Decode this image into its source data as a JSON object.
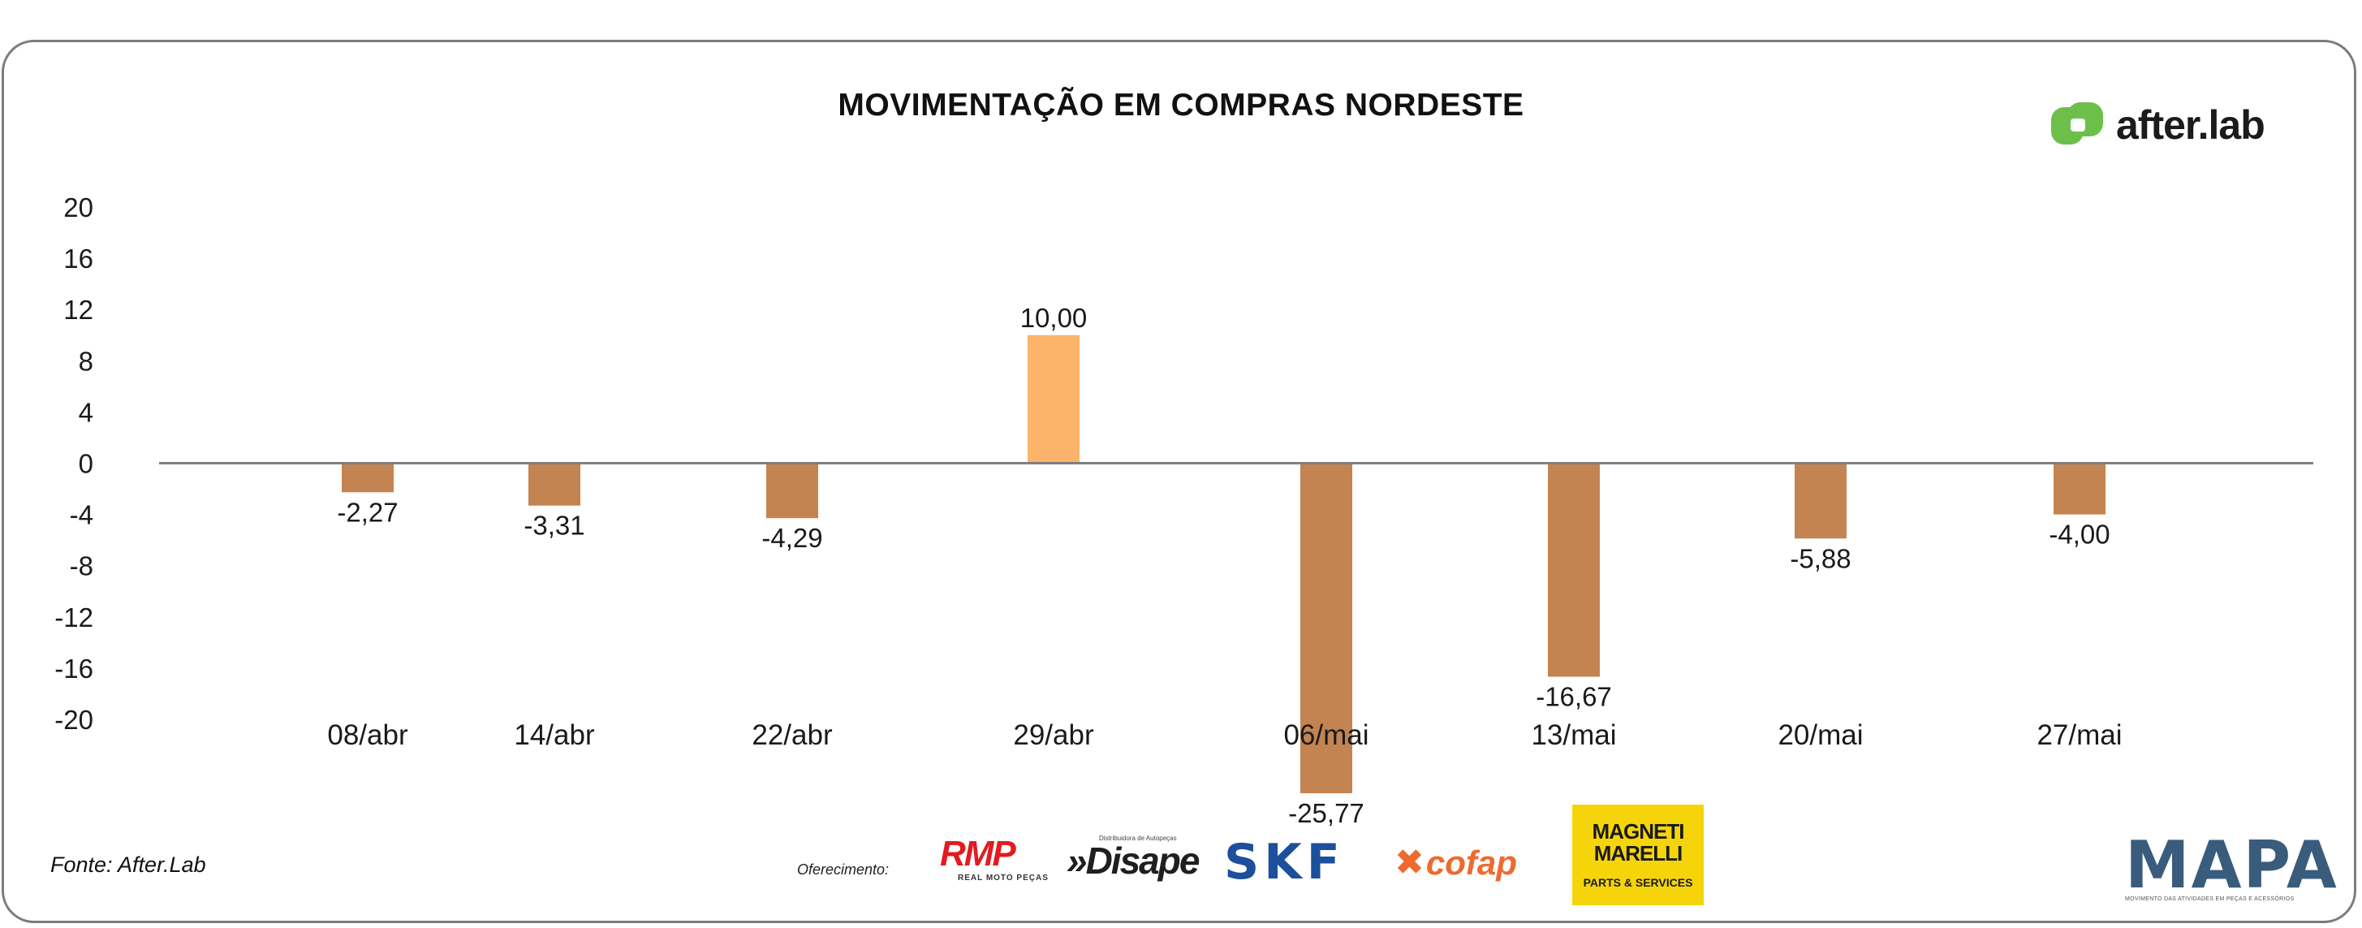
{
  "chart_data": {
    "type": "bar",
    "title": "MOVIMENTAÇÃO EM COMPRAS NORDESTE",
    "categories": [
      "08/abr",
      "14/abr",
      "22/abr",
      "29/abr",
      "06/mai",
      "13/mai",
      "20/mai",
      "27/mai"
    ],
    "values": [
      -2.27,
      -3.31,
      -4.29,
      10.0,
      -25.77,
      -16.67,
      -5.88,
      -4.0
    ],
    "value_labels": [
      "-2,27",
      "-3,31",
      "-4,29",
      "10,00",
      "-25,77",
      "-16,67",
      "-5,88",
      "-4,00"
    ],
    "bar_colors": [
      "#c38452",
      "#c38452",
      "#c38452",
      "#fbb46a",
      "#c38452",
      "#c38452",
      "#c38452",
      "#c38452"
    ],
    "yticks": [
      20,
      16,
      12,
      8,
      4,
      0,
      -4,
      -8,
      -12,
      -16,
      -20
    ],
    "ylim": [
      -20,
      20
    ],
    "xlabel": "",
    "ylabel": "",
    "grid": false,
    "legend": "none",
    "zero_line_color": "#7f7f7f"
  },
  "brand": {
    "name": "after.lab",
    "icon": "after-lab-logo-icon",
    "color": "#6cc04a"
  },
  "source": "Fonte: After.Lab",
  "sponsors": {
    "label": "Oferecimento:",
    "rmp": {
      "name": "RMP",
      "tagline": "REAL MOTO PEÇAS"
    },
    "disape": {
      "name": "»Disape",
      "tagline": "Distribuidora de Autopeças"
    },
    "skf": {
      "name": "SKF"
    },
    "cofap": {
      "name": "cofap"
    },
    "magneti_marelli": {
      "name": "MAGNETI MARELLI",
      "tagline": "PARTS & SERVICES"
    },
    "mapa": {
      "name": "MAPA",
      "tagline": "MOVIMENTO DAS ATIVIDADES EM PEÇAS E ACESSÓRIOS"
    }
  }
}
